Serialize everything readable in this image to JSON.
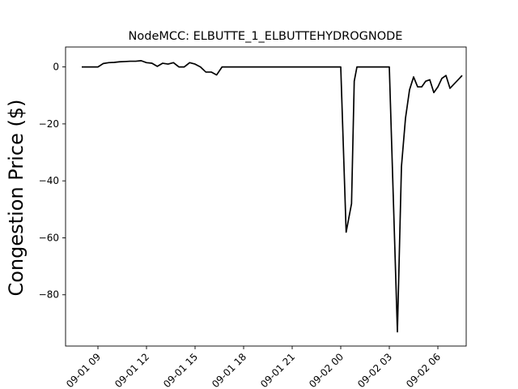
{
  "chart_data": {
    "type": "line",
    "title": "NodeMCC: ELBUTTE_1_ELBUTTEHYDROGNODE",
    "xlabel": "",
    "ylabel": "Congestion Price ($)",
    "ylim": [
      -98,
      7
    ],
    "xlim": [
      "2024-09-01T07:00",
      "2024-09-02T07:45"
    ],
    "grid": false,
    "line_color": "#000000",
    "x_ticks": [
      {
        "x": "2024-09-01T09:00",
        "label": "09-01 09"
      },
      {
        "x": "2024-09-01T12:00",
        "label": "09-01 12"
      },
      {
        "x": "2024-09-01T15:00",
        "label": "09-01 15"
      },
      {
        "x": "2024-09-01T18:00",
        "label": "09-01 18"
      },
      {
        "x": "2024-09-01T21:00",
        "label": "09-01 21"
      },
      {
        "x": "2024-09-02T00:00",
        "label": "09-02 00"
      },
      {
        "x": "2024-09-02T03:00",
        "label": "09-02 03"
      },
      {
        "x": "2024-09-02T06:00",
        "label": "09-02 06"
      }
    ],
    "y_ticks": [
      {
        "y": 0,
        "label": "0"
      },
      {
        "y": -20,
        "label": "−20"
      },
      {
        "y": -40,
        "label": "−40"
      },
      {
        "y": -60,
        "label": "−60"
      },
      {
        "y": -80,
        "label": "−80"
      }
    ],
    "series": [
      {
        "points": [
          {
            "x": "2024-09-01T08:00",
            "y": 0
          },
          {
            "x": "2024-09-01T09:00",
            "y": 0
          },
          {
            "x": "2024-09-01T09:20",
            "y": 1.2
          },
          {
            "x": "2024-09-01T09:40",
            "y": 1.5
          },
          {
            "x": "2024-09-01T10:00",
            "y": 1.6
          },
          {
            "x": "2024-09-01T10:20",
            "y": 1.8
          },
          {
            "x": "2024-09-01T10:40",
            "y": 1.9
          },
          {
            "x": "2024-09-01T11:00",
            "y": 2.0
          },
          {
            "x": "2024-09-01T11:20",
            "y": 2.0
          },
          {
            "x": "2024-09-01T11:40",
            "y": 2.2
          },
          {
            "x": "2024-09-01T12:00",
            "y": 1.5
          },
          {
            "x": "2024-09-01T12:20",
            "y": 1.3
          },
          {
            "x": "2024-09-01T12:40",
            "y": 0.2
          },
          {
            "x": "2024-09-01T13:00",
            "y": 1.3
          },
          {
            "x": "2024-09-01T13:20",
            "y": 1.0
          },
          {
            "x": "2024-09-01T13:40",
            "y": 1.5
          },
          {
            "x": "2024-09-01T14:00",
            "y": 0
          },
          {
            "x": "2024-09-01T14:20",
            "y": 0
          },
          {
            "x": "2024-09-01T14:40",
            "y": 1.5
          },
          {
            "x": "2024-09-01T15:00",
            "y": 1.0
          },
          {
            "x": "2024-09-01T15:20",
            "y": 0
          },
          {
            "x": "2024-09-01T15:40",
            "y": -1.8
          },
          {
            "x": "2024-09-01T16:00",
            "y": -1.8
          },
          {
            "x": "2024-09-01T16:20",
            "y": -2.8
          },
          {
            "x": "2024-09-01T16:40",
            "y": 0
          },
          {
            "x": "2024-09-01T17:00",
            "y": 0
          },
          {
            "x": "2024-09-02T00:00",
            "y": 0
          },
          {
            "x": "2024-09-02T00:20",
            "y": -58
          },
          {
            "x": "2024-09-02T00:40",
            "y": -48
          },
          {
            "x": "2024-09-02T00:50",
            "y": -5
          },
          {
            "x": "2024-09-02T01:00",
            "y": 0
          },
          {
            "x": "2024-09-02T03:00",
            "y": 0
          },
          {
            "x": "2024-09-02T03:30",
            "y": -93
          },
          {
            "x": "2024-09-02T03:45",
            "y": -35
          },
          {
            "x": "2024-09-02T04:00",
            "y": -18
          },
          {
            "x": "2024-09-02T04:15",
            "y": -8
          },
          {
            "x": "2024-09-02T04:30",
            "y": -3.5
          },
          {
            "x": "2024-09-02T04:45",
            "y": -7
          },
          {
            "x": "2024-09-02T05:00",
            "y": -7
          },
          {
            "x": "2024-09-02T05:15",
            "y": -5
          },
          {
            "x": "2024-09-02T05:30",
            "y": -4.5
          },
          {
            "x": "2024-09-02T05:45",
            "y": -9
          },
          {
            "x": "2024-09-02T06:00",
            "y": -7
          },
          {
            "x": "2024-09-02T06:15",
            "y": -4
          },
          {
            "x": "2024-09-02T06:30",
            "y": -3
          },
          {
            "x": "2024-09-02T06:45",
            "y": -7.5
          },
          {
            "x": "2024-09-02T07:00",
            "y": -6
          },
          {
            "x": "2024-09-02T07:15",
            "y": -4.5
          },
          {
            "x": "2024-09-02T07:30",
            "y": -3
          }
        ]
      }
    ]
  }
}
